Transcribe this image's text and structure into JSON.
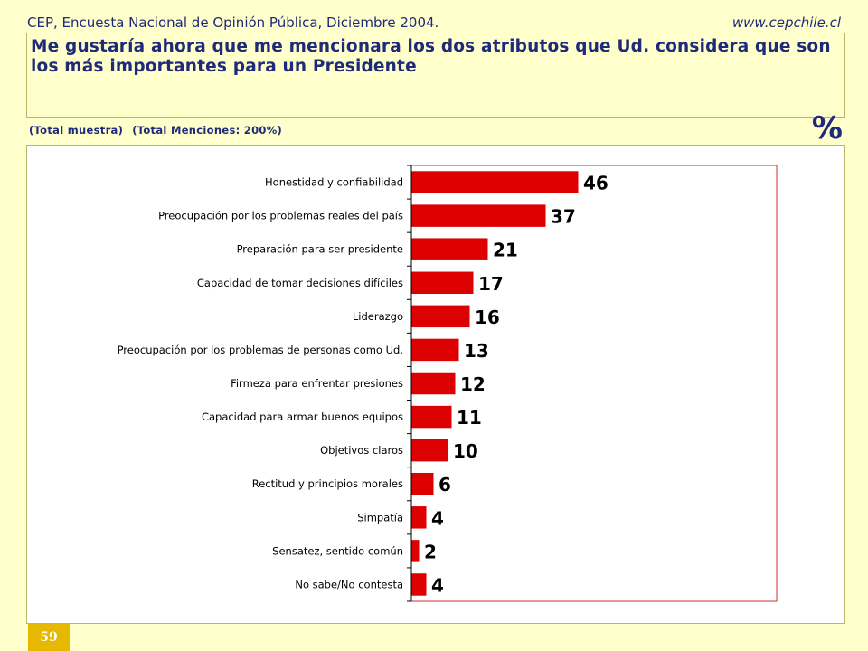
{
  "header": {
    "source": "CEP, Encuesta Nacional de Opinión Pública, Diciembre 2004.",
    "website": "www.cepchile.cl"
  },
  "question": "Me gustaría ahora que me mencionara los dos atributos que Ud. considera que son los más importantes para un Presidente",
  "subtitle": {
    "sample": "(Total muestra)",
    "mentions": "(Total Menciones: 200%)"
  },
  "unit_symbol": "%",
  "page_number": "59",
  "colors": {
    "bar": "#dd0000",
    "plot_border": "#cc3333",
    "title_text": "#1f2a78",
    "background": "#ffffcc",
    "page_badge": "#e6b800"
  },
  "chart_data": {
    "type": "bar",
    "orientation": "horizontal",
    "categories": [
      "Honestidad y confiabilidad",
      "Preocupación por los problemas reales del país",
      "Preparación para ser presidente",
      "Capacidad de tomar decisiones difíciles",
      "Liderazgo",
      "Preocupación por los problemas de personas como Ud.",
      "Firmeza para enfrentar presiones",
      "Capacidad para armar buenos equipos",
      "Objetivos claros",
      "Rectitud y principios morales",
      "Simpatía",
      "Sensatez, sentido común",
      "No sabe/No contesta"
    ],
    "values": [
      46,
      37,
      21,
      17,
      16,
      13,
      12,
      11,
      10,
      6,
      4,
      2,
      4
    ],
    "title": "",
    "xlabel": "",
    "ylabel": "",
    "xlim": [
      0,
      100
    ],
    "grid": false,
    "data_labels": true
  }
}
